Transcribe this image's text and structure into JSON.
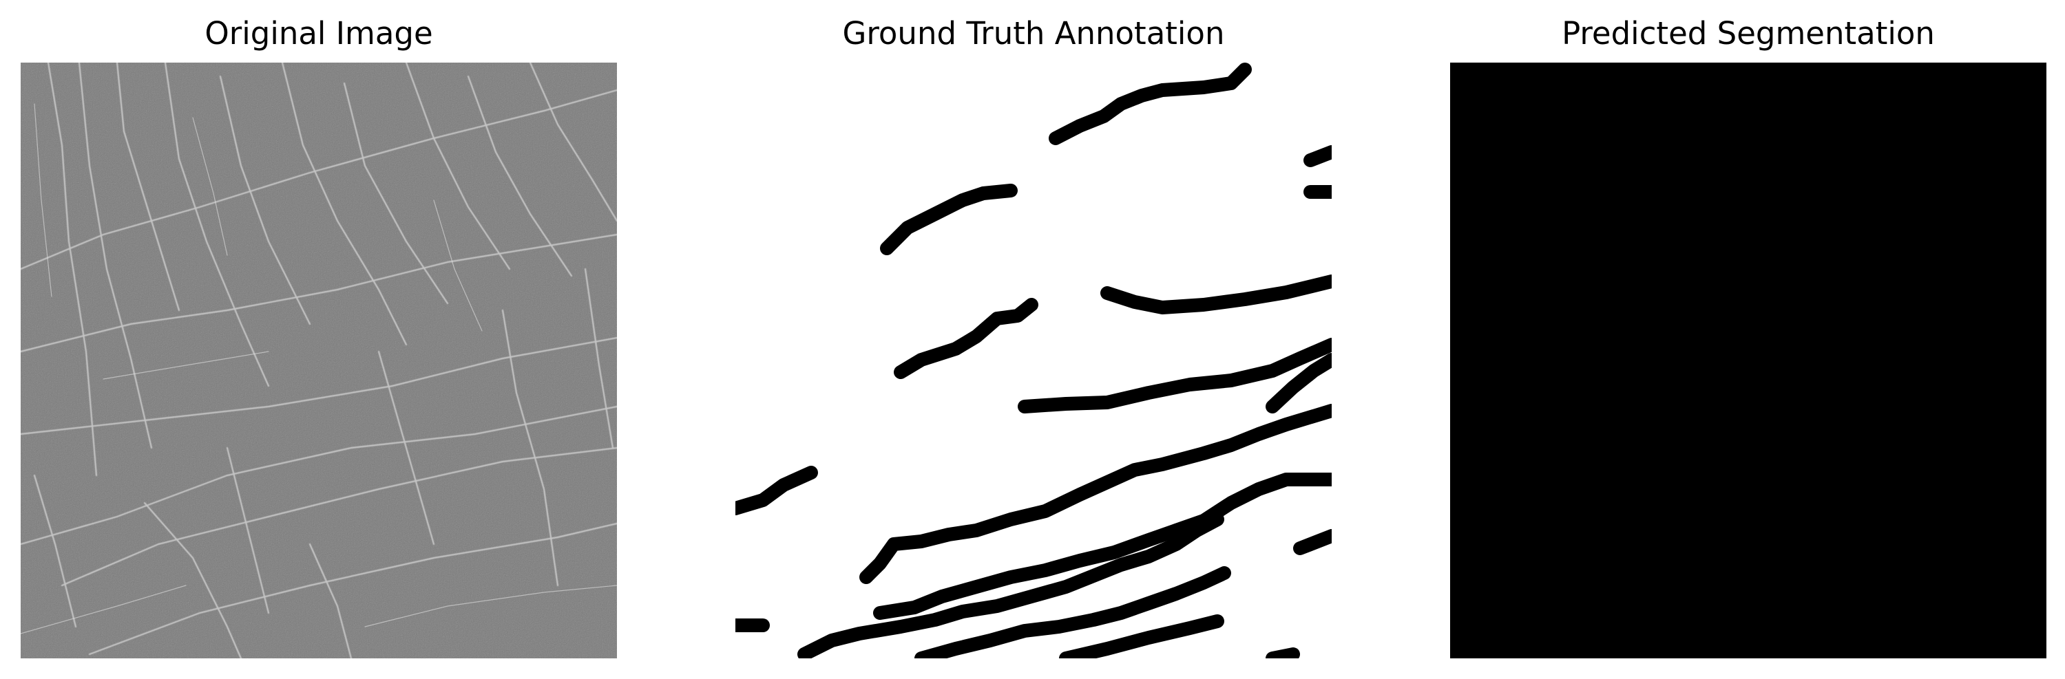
{
  "panels": [
    {
      "title": "Original Image",
      "content": "grayscale texture with bright crack-like lines"
    },
    {
      "title": "Ground Truth Annotation",
      "content": "black crack strokes on white background"
    },
    {
      "title": "Predicted Segmentation",
      "content": "all-black mask"
    }
  ],
  "colors": {
    "background": "#ffffff",
    "texture_base": "#7a7a7a",
    "crack_light": "#d4d4d4",
    "mask": "#000000"
  }
}
